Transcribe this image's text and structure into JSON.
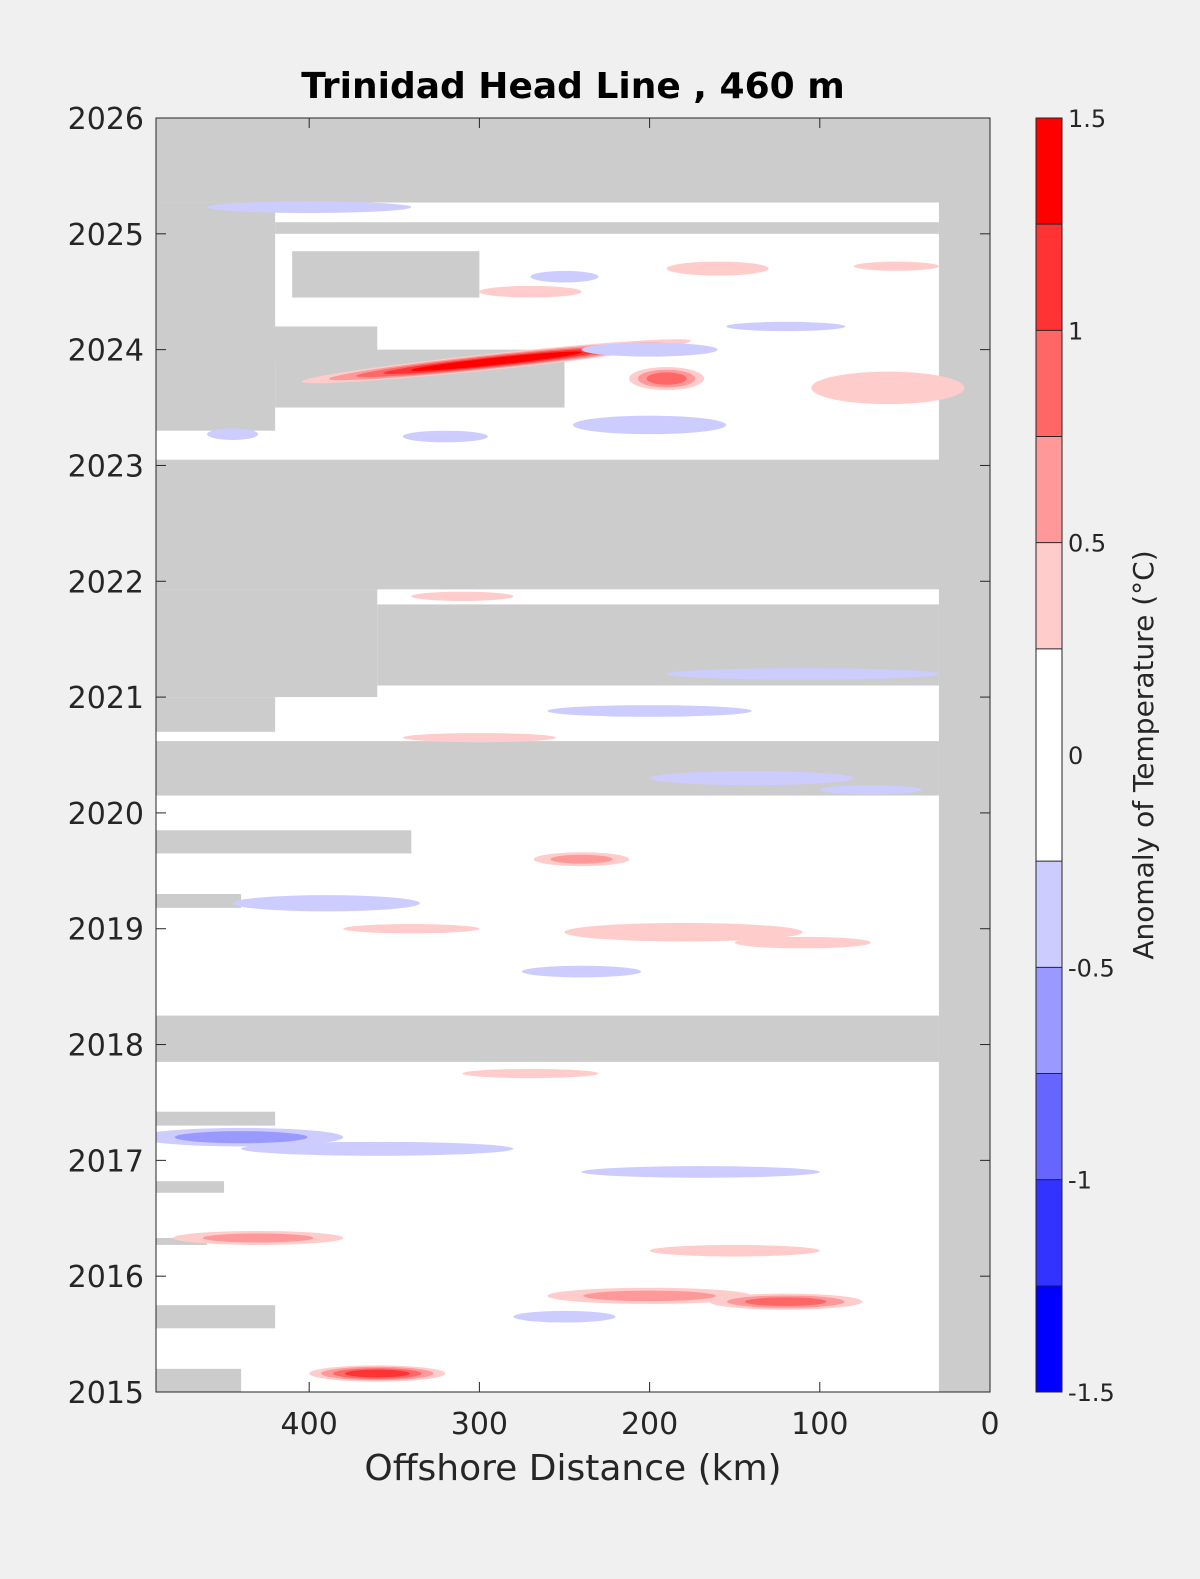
{
  "chart_data": {
    "type": "heatmap",
    "title": "Trinidad Head Line , 460 m",
    "xlabel": "Offshore Distance (km)",
    "ylabel": "",
    "xlim": [
      490,
      0
    ],
    "ylim": [
      2015,
      2026
    ],
    "x_reversed": true,
    "xticks": [
      400,
      300,
      200,
      100,
      0
    ],
    "yticks": [
      2015,
      2016,
      2017,
      2018,
      2019,
      2020,
      2021,
      2022,
      2023,
      2024,
      2025,
      2026
    ],
    "grid": false,
    "background_color": "#ffffff",
    "no_data_color": "#cccccc",
    "colorbar": {
      "label": "Anomaly of Temperature (°C)",
      "range": [
        -1.5,
        1.5
      ],
      "ticks": [
        "1.5",
        "1",
        "0.5",
        "0",
        "-0.5",
        "-1",
        "-1.5"
      ],
      "tick_values": [
        1.5,
        1,
        0.5,
        0,
        -0.5,
        -1,
        -1.5
      ],
      "levels": [
        -1.5,
        -1.25,
        -1.0,
        -0.75,
        -0.5,
        -0.25,
        0.25,
        0.5,
        0.75,
        1.0,
        1.25,
        1.5
      ],
      "colors": [
        "#0000ff",
        "#3333ff",
        "#6666ff",
        "#9999ff",
        "#ccccff",
        "#ffffff",
        "#ffcccc",
        "#ff9999",
        "#ff6666",
        "#ff3333",
        "#ff0000"
      ]
    },
    "no_data_regions": [
      {
        "x0": 490,
        "x1": 0,
        "y0": 2025.27,
        "y1": 2026
      },
      {
        "x0": 30,
        "x1": 0,
        "y0": 2015,
        "y1": 2026
      },
      {
        "x0": 490,
        "x1": 420,
        "y0": 2023.3,
        "y1": 2025.27
      },
      {
        "x0": 490,
        "x1": 360,
        "y0": 2023.9,
        "y1": 2024.2
      },
      {
        "x0": 420,
        "x1": 250,
        "y0": 2023.5,
        "y1": 2024.0
      },
      {
        "x0": 420,
        "x1": 30,
        "y0": 2025.1,
        "y1": 2025.0
      },
      {
        "x0": 410,
        "x1": 300,
        "y0": 2024.45,
        "y1": 2024.85
      },
      {
        "x0": 490,
        "x1": 0,
        "y0": 2021.93,
        "y1": 2023.05
      },
      {
        "x0": 490,
        "x1": 360,
        "y0": 2021.0,
        "y1": 2021.93
      },
      {
        "x0": 360,
        "x1": 30,
        "y0": 2021.1,
        "y1": 2021.8
      },
      {
        "x0": 490,
        "x1": 420,
        "y0": 2020.7,
        "y1": 2021.0
      },
      {
        "x0": 490,
        "x1": 30,
        "y0": 2020.15,
        "y1": 2020.62
      },
      {
        "x0": 490,
        "x1": 340,
        "y0": 2019.65,
        "y1": 2019.85
      },
      {
        "x0": 490,
        "x1": 440,
        "y0": 2019.18,
        "y1": 2019.3
      },
      {
        "x0": 490,
        "x1": 30,
        "y0": 2017.85,
        "y1": 2018.25
      },
      {
        "x0": 490,
        "x1": 420,
        "y0": 2017.3,
        "y1": 2017.42
      },
      {
        "x0": 490,
        "x1": 450,
        "y0": 2016.72,
        "y1": 2016.82
      },
      {
        "x0": 490,
        "x1": 460,
        "y0": 2016.27,
        "y1": 2016.33
      },
      {
        "x0": 490,
        "x1": 420,
        "y0": 2015.55,
        "y1": 2015.75
      },
      {
        "x0": 490,
        "x1": 440,
        "y0": 2015.0,
        "y1": 2015.2
      }
    ],
    "anomaly_features": [
      {
        "x": 290,
        "y": 2023.9,
        "rx": 115,
        "ry": 0.07,
        "rot": -6,
        "value": 1.5
      },
      {
        "x": 190,
        "y": 2023.75,
        "rx": 22,
        "ry": 0.1,
        "value": 1.0
      },
      {
        "x": 60,
        "y": 2023.67,
        "rx": 45,
        "ry": 0.14,
        "value": 0.6
      },
      {
        "x": 160,
        "y": 2024.7,
        "rx": 30,
        "ry": 0.06,
        "value": 0.5
      },
      {
        "x": 270,
        "y": 2024.5,
        "rx": 30,
        "ry": 0.05,
        "value": 0.5
      },
      {
        "x": 250,
        "y": 2024.63,
        "rx": 20,
        "ry": 0.05,
        "value": -0.6
      },
      {
        "x": 200,
        "y": 2023.35,
        "rx": 45,
        "ry": 0.08,
        "value": -0.6
      },
      {
        "x": 320,
        "y": 2023.25,
        "rx": 25,
        "ry": 0.05,
        "value": -0.4
      },
      {
        "x": 445,
        "y": 2023.27,
        "rx": 15,
        "ry": 0.05,
        "value": -0.6
      },
      {
        "x": 400,
        "y": 2025.23,
        "rx": 60,
        "ry": 0.05,
        "value": -0.5
      },
      {
        "x": 200,
        "y": 2024.0,
        "rx": 40,
        "ry": 0.06,
        "value": -0.4
      },
      {
        "x": 310,
        "y": 2021.87,
        "rx": 30,
        "ry": 0.04,
        "value": 0.5
      },
      {
        "x": 110,
        "y": 2021.2,
        "rx": 80,
        "ry": 0.05,
        "value": -0.4
      },
      {
        "x": 200,
        "y": 2020.88,
        "rx": 60,
        "ry": 0.05,
        "value": -0.5
      },
      {
        "x": 300,
        "y": 2020.65,
        "rx": 45,
        "ry": 0.04,
        "value": 0.4
      },
      {
        "x": 140,
        "y": 2020.3,
        "rx": 60,
        "ry": 0.06,
        "value": -0.4
      },
      {
        "x": 240,
        "y": 2019.6,
        "rx": 28,
        "ry": 0.06,
        "value": 0.8
      },
      {
        "x": 390,
        "y": 2019.22,
        "rx": 55,
        "ry": 0.07,
        "value": -0.6
      },
      {
        "x": 180,
        "y": 2018.97,
        "rx": 70,
        "ry": 0.08,
        "value": 0.5
      },
      {
        "x": 110,
        "y": 2018.88,
        "rx": 40,
        "ry": 0.05,
        "value": 0.6
      },
      {
        "x": 240,
        "y": 2018.63,
        "rx": 35,
        "ry": 0.05,
        "value": -0.6
      },
      {
        "x": 340,
        "y": 2019.0,
        "rx": 40,
        "ry": 0.04,
        "value": 0.4
      },
      {
        "x": 440,
        "y": 2017.2,
        "rx": 60,
        "ry": 0.08,
        "value": -0.8
      },
      {
        "x": 360,
        "y": 2017.1,
        "rx": 80,
        "ry": 0.06,
        "value": -0.4
      },
      {
        "x": 170,
        "y": 2016.9,
        "rx": 70,
        "ry": 0.05,
        "value": -0.4
      },
      {
        "x": 270,
        "y": 2017.75,
        "rx": 40,
        "ry": 0.04,
        "value": 0.6
      },
      {
        "x": 430,
        "y": 2016.33,
        "rx": 50,
        "ry": 0.06,
        "value": 0.8
      },
      {
        "x": 200,
        "y": 2015.83,
        "rx": 60,
        "ry": 0.07,
        "value": 0.8
      },
      {
        "x": 120,
        "y": 2015.78,
        "rx": 45,
        "ry": 0.07,
        "value": 0.9
      },
      {
        "x": 360,
        "y": 2015.16,
        "rx": 40,
        "ry": 0.07,
        "value": 1.2
      },
      {
        "x": 250,
        "y": 2015.65,
        "rx": 30,
        "ry": 0.05,
        "value": -0.6
      },
      {
        "x": 150,
        "y": 2016.22,
        "rx": 50,
        "ry": 0.05,
        "value": 0.5
      },
      {
        "x": 120,
        "y": 2024.2,
        "rx": 35,
        "ry": 0.04,
        "value": -0.4
      },
      {
        "x": 55,
        "y": 2024.72,
        "rx": 25,
        "ry": 0.04,
        "value": 0.6
      },
      {
        "x": 70,
        "y": 2020.2,
        "rx": 30,
        "ry": 0.04,
        "value": -0.4
      }
    ]
  }
}
